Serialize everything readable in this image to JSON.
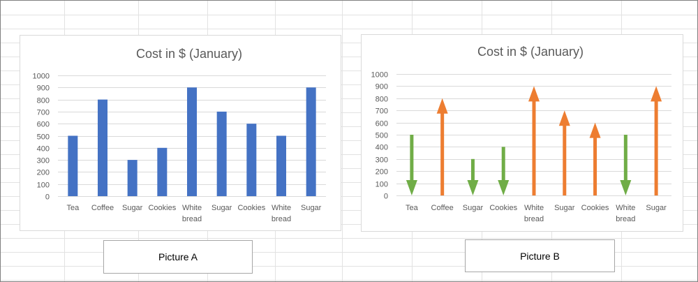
{
  "colors": {
    "bar": "#4472c4",
    "arrow_up": "#ed7d31",
    "arrow_down": "#70ad47",
    "gridline": "#d9d9d9",
    "text": "#595959",
    "sheet_grid": "#e2e2e2"
  },
  "captions": {
    "a": "Picture A",
    "b": "Picture B"
  },
  "chart_data": [
    {
      "type": "bar",
      "title": "Cost in $ (January)",
      "categories": [
        [
          "Tea"
        ],
        [
          "Coffee"
        ],
        [
          "Sugar"
        ],
        [
          "Cookies"
        ],
        [
          "White",
          "bread"
        ],
        [
          "Sugar"
        ],
        [
          "Cookies"
        ],
        [
          "White",
          "bread"
        ],
        [
          "Sugar"
        ]
      ],
      "values": [
        500,
        800,
        300,
        400,
        900,
        700,
        600,
        500,
        900
      ],
      "ylim": [
        0,
        1000
      ],
      "yticks": [
        0,
        100,
        200,
        300,
        400,
        500,
        600,
        700,
        800,
        900,
        1000
      ],
      "grid": true,
      "legend": "none"
    },
    {
      "type": "bar",
      "style": "arrows",
      "title": "Cost in $ (January)",
      "categories": [
        [
          "Tea"
        ],
        [
          "Coffee"
        ],
        [
          "Sugar"
        ],
        [
          "Cookies"
        ],
        [
          "White",
          "bread"
        ],
        [
          "Sugar"
        ],
        [
          "Cookies"
        ],
        [
          "White",
          "bread"
        ],
        [
          "Sugar"
        ]
      ],
      "values": [
        500,
        800,
        300,
        400,
        900,
        700,
        600,
        500,
        900
      ],
      "directions": [
        "down",
        "up",
        "down",
        "down",
        "up",
        "up",
        "up",
        "down",
        "up"
      ],
      "ylim": [
        0,
        1000
      ],
      "yticks": [
        0,
        100,
        200,
        300,
        400,
        500,
        600,
        700,
        800,
        900,
        1000
      ],
      "grid": true,
      "legend": "none"
    }
  ]
}
